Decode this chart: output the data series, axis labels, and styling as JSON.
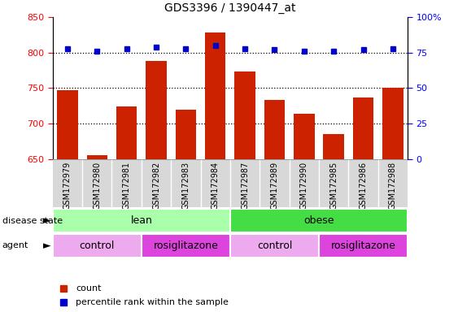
{
  "title": "GDS3396 / 1390447_at",
  "samples": [
    "GSM172979",
    "GSM172980",
    "GSM172981",
    "GSM172982",
    "GSM172983",
    "GSM172984",
    "GSM172987",
    "GSM172989",
    "GSM172990",
    "GSM172985",
    "GSM172986",
    "GSM172988"
  ],
  "counts": [
    747,
    655,
    724,
    788,
    720,
    828,
    773,
    733,
    714,
    685,
    737,
    750
  ],
  "percentile_ranks": [
    78,
    76,
    78,
    79,
    78,
    80,
    78,
    77,
    76,
    76,
    77,
    78
  ],
  "ylim_left": [
    650,
    850
  ],
  "ylim_right": [
    0,
    100
  ],
  "yticks_left": [
    650,
    700,
    750,
    800,
    850
  ],
  "yticks_right": [
    0,
    25,
    50,
    75,
    100
  ],
  "bar_color": "#cc2200",
  "dot_color": "#0000cc",
  "lean_color": "#aaffaa",
  "obese_color": "#44dd44",
  "control_color": "#eeaaee",
  "rosiglitazone_color": "#dd44dd",
  "sample_bg_color": "#d8d8d8",
  "legend_count_label": "count",
  "legend_percentile_label": "percentile rank within the sample",
  "disease_state_label": "disease state",
  "agent_label": "agent"
}
